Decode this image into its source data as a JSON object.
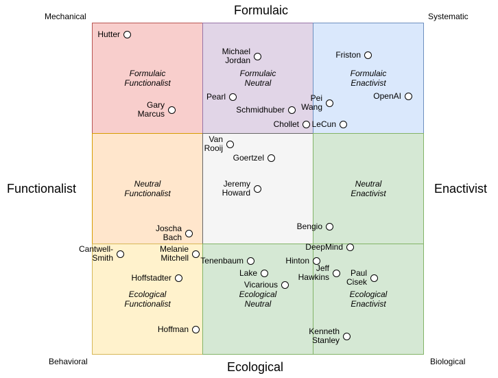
{
  "axes": {
    "top": "Formulaic",
    "bottom": "Ecological",
    "left": "Functionalist",
    "right": "Enactivist"
  },
  "corners": {
    "top_left": "Mechanical",
    "top_right": "Systematic",
    "bottom_left": "Behavioral",
    "bottom_right": "Biological"
  },
  "cells": [
    {
      "id": "formulaic-functionalist",
      "label": "Formulaic\nFunctionalist",
      "color": "#f8cecc"
    },
    {
      "id": "formulaic-neutral",
      "label": "Formulaic\nNeutral",
      "color": "#e1d5e7"
    },
    {
      "id": "formulaic-enactivist",
      "label": "Formulaic\nEnactivist",
      "color": "#dae8fc"
    },
    {
      "id": "neutral-functionalist",
      "label": "Neutral\nFunctionalist",
      "color": "#ffe6cc"
    },
    {
      "id": "neutral-center",
      "label": "",
      "color": "#f5f5f5"
    },
    {
      "id": "neutral-enactivist",
      "label": "Neutral\nEnactivist",
      "color": "#d5e8d4"
    },
    {
      "id": "ecological-functionalist",
      "label": "Ecological\nFunctionalist",
      "color": "#fff2cc"
    },
    {
      "id": "ecological-neutral",
      "label": "Ecological\nNeutral",
      "color": "#d5e8d4"
    },
    {
      "id": "ecological-enactivist",
      "label": "Ecological\nEnactivist",
      "color": "#d5e8d4"
    }
  ],
  "people": [
    {
      "name": "Hutter"
    },
    {
      "name": "Gary\nMarcus"
    },
    {
      "name": "Michael\nJordan"
    },
    {
      "name": "Pearl"
    },
    {
      "name": "Schmidhuber"
    },
    {
      "name": "Chollet"
    },
    {
      "name": "Friston"
    },
    {
      "name": "Pei\nWang"
    },
    {
      "name": "OpenAI"
    },
    {
      "name": "LeCun"
    },
    {
      "name": "Van\nRooij"
    },
    {
      "name": "Goertzel"
    },
    {
      "name": "Jeremy\nHoward"
    },
    {
      "name": "Bengio"
    },
    {
      "name": "Joscha\nBach"
    },
    {
      "name": "Cantwell-\nSmith"
    },
    {
      "name": "Melanie\nMitchell"
    },
    {
      "name": "Hoffstadter"
    },
    {
      "name": "Hoffman"
    },
    {
      "name": "Tenenbaum"
    },
    {
      "name": "Lake"
    },
    {
      "name": "Vicarious"
    },
    {
      "name": "DeepMind"
    },
    {
      "name": "Hinton"
    },
    {
      "name": "Jeff\nHawkins"
    },
    {
      "name": "Paul\nCisek"
    },
    {
      "name": "Kenneth\nStanley"
    }
  ]
}
